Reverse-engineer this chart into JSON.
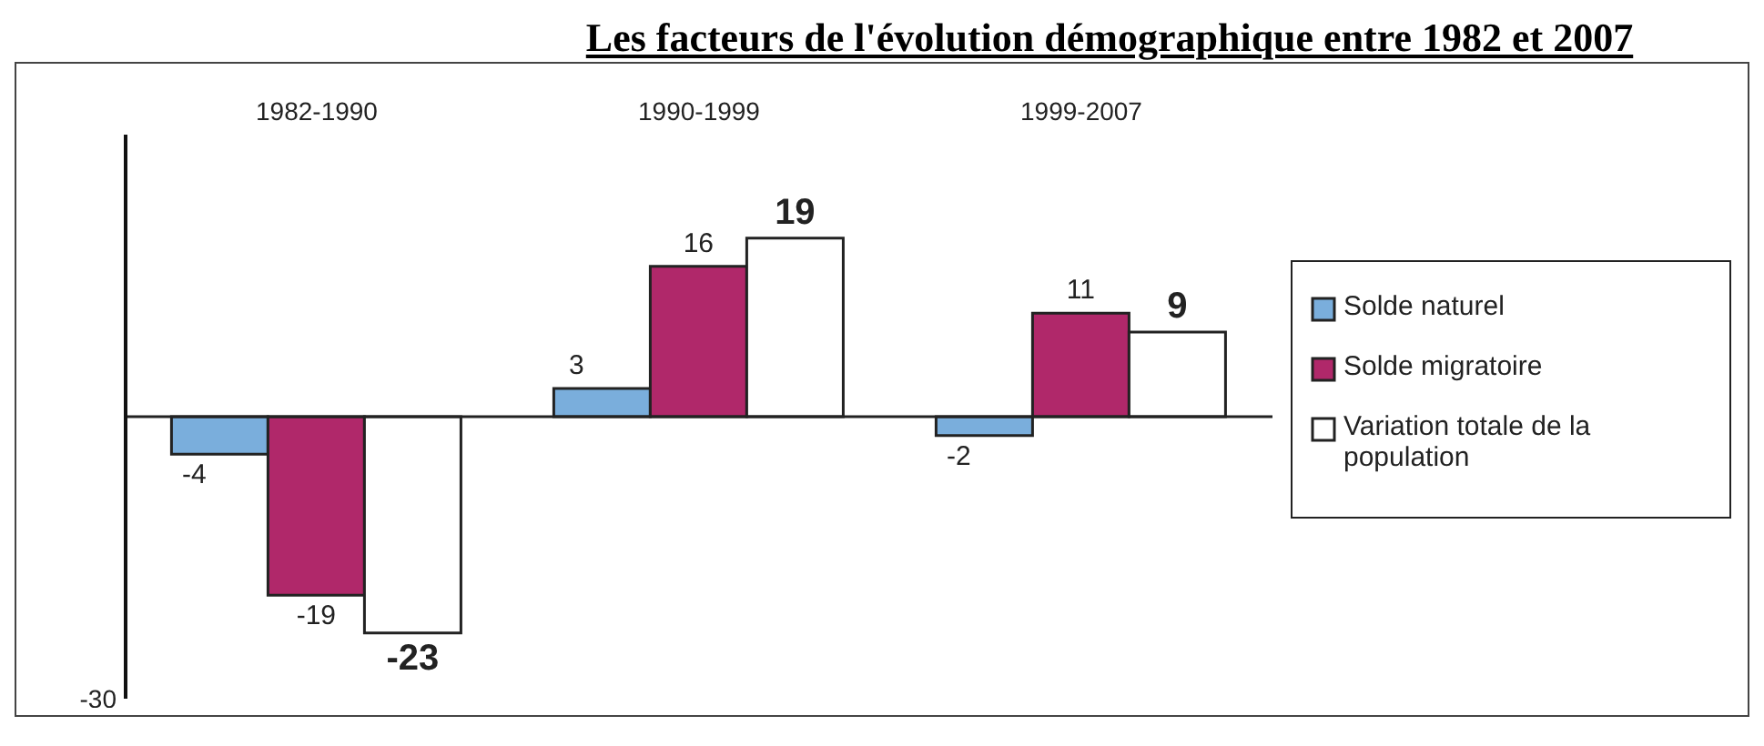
{
  "chart_data": {
    "type": "bar",
    "title": "Les facteurs de l'évolution démographique entre 1982 et 2007",
    "categories": [
      "1982-1990",
      "1990-1999",
      "1999-2007"
    ],
    "series": [
      {
        "name": "Solde naturel",
        "color": "#7aaedc",
        "values": [
          -4,
          3,
          -2
        ]
      },
      {
        "name": "Solde migratoire",
        "color": "#b0286a",
        "values": [
          -19,
          16,
          11
        ]
      },
      {
        "name": "Variation totale de la population",
        "color": "#ffffff",
        "values": [
          -23,
          19,
          9
        ]
      }
    ],
    "ylim": [
      -30,
      30
    ],
    "annotations": [
      "-30"
    ],
    "data_labels": true,
    "legend": "right"
  }
}
